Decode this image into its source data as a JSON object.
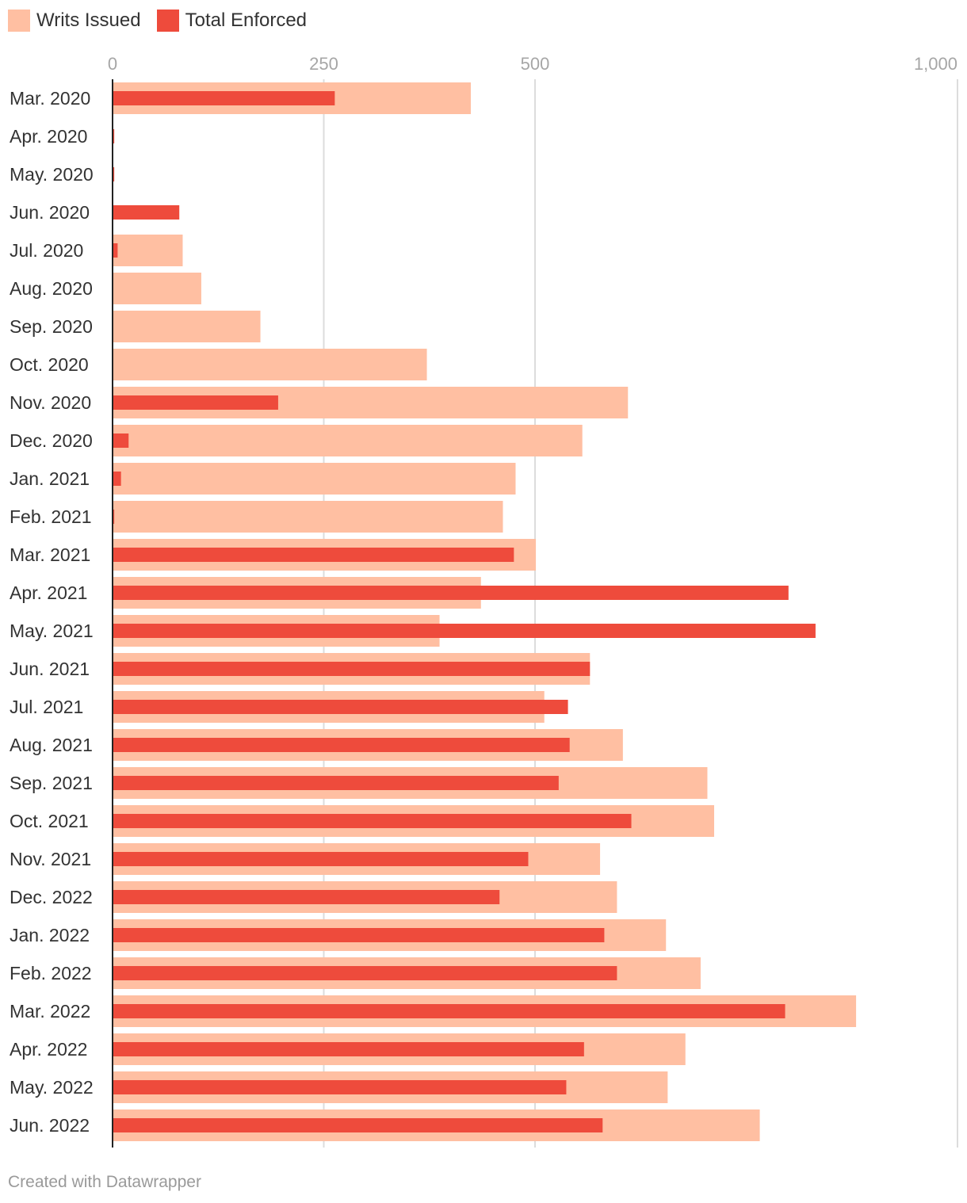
{
  "legend": {
    "writs_label": "Writs Issued",
    "enforced_label": "Total Enforced"
  },
  "colors": {
    "writs": "#ffbfa2",
    "enforced": "#ee4b3c",
    "grid": "#dcdcdc",
    "axis": "#222222",
    "tick_text": "#a6a6a6",
    "label_text": "#333333"
  },
  "footer": {
    "credit": "Created with Datawrapper"
  },
  "chart_data": {
    "type": "bar",
    "orientation": "horizontal",
    "title": "",
    "xlabel": "",
    "ylabel": "",
    "xlim": [
      0,
      1000
    ],
    "ticks": [
      0,
      250,
      500,
      1000
    ],
    "tick_labels": [
      "0",
      "250",
      "500",
      "1,000"
    ],
    "grid": true,
    "legend_position": "top-left",
    "categories": [
      "Mar. 2020",
      "Apr. 2020",
      "May. 2020",
      "Jun. 2020",
      "Jul. 2020",
      "Aug. 2020",
      "Sep. 2020",
      "Oct. 2020",
      "Nov. 2020",
      "Dec. 2020",
      "Jan. 2021",
      "Feb. 2021",
      "Mar. 2021",
      "Apr. 2021",
      "May. 2021",
      "Jun. 2021",
      "Jul. 2021",
      "Aug. 2021",
      "Sep. 2021",
      "Oct. 2021",
      "Nov. 2021",
      "Dec. 2022",
      "Jan. 2022",
      "Feb. 2022",
      "Mar. 2022",
      "Apr. 2022",
      "May. 2022",
      "Jun. 2022"
    ],
    "series": [
      {
        "name": "Writs Issued",
        "values": [
          424,
          0,
          0,
          0,
          83,
          105,
          175,
          372,
          610,
          556,
          477,
          462,
          501,
          436,
          387,
          565,
          511,
          604,
          704,
          712,
          577,
          597,
          655,
          696,
          880,
          678,
          657,
          766
        ]
      },
      {
        "name": "Total Enforced",
        "values": [
          263,
          2,
          2,
          79,
          6,
          0,
          0,
          0,
          196,
          19,
          10,
          2,
          475,
          800,
          832,
          565,
          539,
          541,
          528,
          614,
          492,
          458,
          582,
          597,
          796,
          558,
          537,
          580
        ]
      }
    ]
  }
}
